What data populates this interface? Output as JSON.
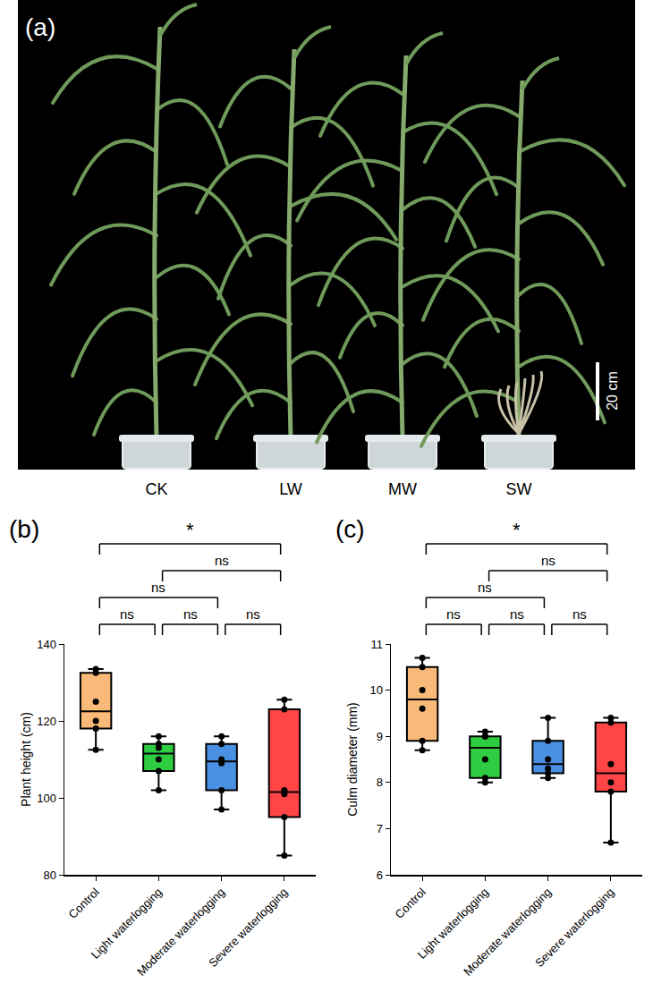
{
  "panel_a": {
    "label": "(a)",
    "plants": [
      "CK",
      "LW",
      "MW",
      "SW"
    ],
    "scale_bar": "20 cm"
  },
  "chart_data": [
    {
      "type": "box",
      "panel": "(b)",
      "categories": [
        "Control",
        "Light waterlogging",
        "Moderate waterlogging",
        "Severe waterlogging"
      ],
      "colors": [
        "#f9b979",
        "#2ecc40",
        "#4a90e2",
        "#ff4545"
      ],
      "y_label": "Plant height (cm)",
      "ylim": [
        80,
        140
      ],
      "yticks": [
        80,
        100,
        120,
        140
      ],
      "points": [
        [
          112.5,
          118,
          120,
          125,
          132.5,
          133.5
        ],
        [
          102,
          107,
          110,
          113,
          114,
          116
        ],
        [
          97,
          102,
          109,
          110,
          114,
          116
        ],
        [
          85,
          95,
          101,
          102,
          123,
          125.5
        ]
      ],
      "comparisons": [
        {
          "groups": [
            0,
            1
          ],
          "label": "ns"
        },
        {
          "groups": [
            1,
            2
          ],
          "label": "ns"
        },
        {
          "groups": [
            2,
            3
          ],
          "label": "ns"
        },
        {
          "groups": [
            0,
            2
          ],
          "label": "ns"
        },
        {
          "groups": [
            1,
            3
          ],
          "label": "ns"
        },
        {
          "groups": [
            0,
            3
          ],
          "label": "*"
        }
      ]
    },
    {
      "type": "box",
      "panel": "(c)",
      "categories": [
        "Control",
        "Light waterlogging",
        "Moderate waterlogging",
        "Severe waterlogging"
      ],
      "colors": [
        "#f9b979",
        "#2ecc40",
        "#4a90e2",
        "#ff4545"
      ],
      "y_label": "Culm diameter (mm)",
      "ylim": [
        6,
        11
      ],
      "yticks": [
        6,
        7,
        8,
        9,
        10,
        11
      ],
      "points": [
        [
          8.7,
          8.9,
          9.6,
          10.0,
          10.5,
          10.7
        ],
        [
          8.0,
          8.1,
          8.5,
          9.0,
          9.0,
          9.1
        ],
        [
          8.1,
          8.2,
          8.3,
          8.5,
          8.9,
          9.4
        ],
        [
          6.7,
          7.8,
          8.0,
          8.4,
          9.3,
          9.4
        ]
      ],
      "comparisons": [
        {
          "groups": [
            0,
            1
          ],
          "label": "ns"
        },
        {
          "groups": [
            1,
            2
          ],
          "label": "ns"
        },
        {
          "groups": [
            2,
            3
          ],
          "label": "ns"
        },
        {
          "groups": [
            0,
            2
          ],
          "label": "ns"
        },
        {
          "groups": [
            1,
            3
          ],
          "label": "ns"
        },
        {
          "groups": [
            0,
            3
          ],
          "label": "*"
        }
      ]
    }
  ]
}
